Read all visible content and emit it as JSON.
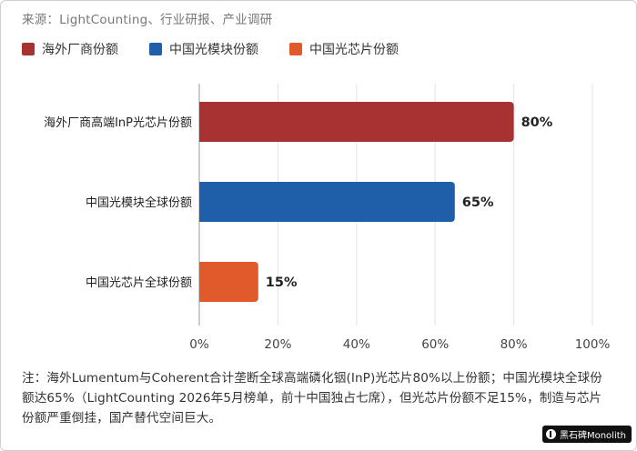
{
  "source": "来源：LightCounting、行业研报、产业调研",
  "legend": [
    {
      "label": "海外厂商份额",
      "color": "#a83232"
    },
    {
      "label": "中国光模块份额",
      "color": "#1f5ea8"
    },
    {
      "label": "中国光芯片份额",
      "color": "#e05a2c"
    }
  ],
  "chart_data": {
    "type": "bar",
    "orientation": "horizontal",
    "categories": [
      "海外厂商高端InP光芯片份额",
      "中国光模块全球份额",
      "中国光芯片全球份额"
    ],
    "values": [
      80,
      65,
      15
    ],
    "value_labels": [
      "80%",
      "65%",
      "15%"
    ],
    "colors": [
      "#a83232",
      "#1f5ea8",
      "#e05a2c"
    ],
    "x_ticks": [
      "0%",
      "20%",
      "40%",
      "60%",
      "80%",
      "100%"
    ],
    "xlim": [
      0,
      100
    ],
    "grid": true
  },
  "note": "注：海外Lumentum与Coherent合计垄断全球高端磷化铟(InP)光芯片80%以上份额；中国光模块全球份额达65%（LightCounting 2026年5月榜单，前十中国独占七席），但光芯片份额不足15%，制造与芯片份额严重倒挂，国产替代空间巨大。",
  "watermark": "黑石碑Monolith"
}
